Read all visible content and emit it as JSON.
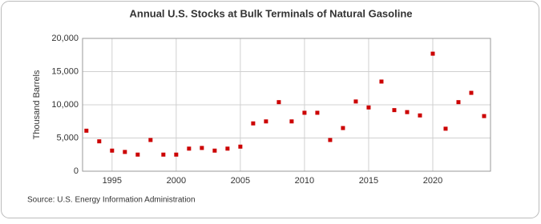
{
  "chart_data": {
    "type": "scatter",
    "title": "Annual U.S. Stocks at Bulk Terminals of Natural Gasoline",
    "y_label": "Thousand Barrels",
    "source": "Source: U.S. Energy Information Administration",
    "x": [
      1993,
      1994,
      1995,
      1996,
      1997,
      1998,
      1999,
      2000,
      2001,
      2002,
      2003,
      2004,
      2005,
      2006,
      2007,
      2008,
      2009,
      2010,
      2011,
      2012,
      2013,
      2014,
      2015,
      2016,
      2017,
      2018,
      2019,
      2020,
      2021,
      2022,
      2023,
      2024
    ],
    "values": [
      6100,
      4500,
      3100,
      2900,
      2500,
      4700,
      2500,
      2500,
      3400,
      3500,
      3100,
      3400,
      3700,
      7200,
      7500,
      10400,
      7500,
      8800,
      8800,
      4700,
      6500,
      10500,
      9600,
      13500,
      9200,
      8900,
      8400,
      17700,
      6400,
      10400,
      11800,
      8300
    ],
    "color": "#cc0000",
    "xlim": [
      1992.7,
      2024.5
    ],
    "xticks": [
      1995,
      2000,
      2005,
      2010,
      2015,
      2020
    ],
    "ylim": [
      0,
      20000
    ],
    "yticks": [
      0,
      {
        "value": 5000,
        "label": "5,000"
      },
      {
        "value": 10000,
        "label": "10,000"
      },
      {
        "value": 15000,
        "label": "15,000"
      },
      {
        "value": 20000,
        "label": "20,000"
      }
    ],
    "grid": true
  }
}
